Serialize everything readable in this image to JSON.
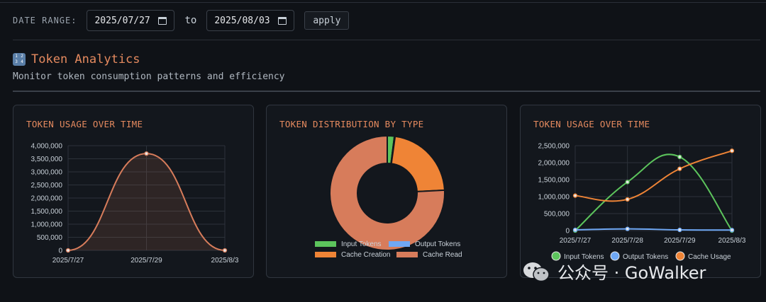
{
  "filters": {
    "label": "DATE RANGE:",
    "start_date": "2025/07/27",
    "separator": "to",
    "end_date": "2025/08/03",
    "apply_label": "apply"
  },
  "section": {
    "icon": "input-numbers-icon",
    "title": "Token Analytics",
    "subtitle": "Monitor token consumption patterns and efficiency"
  },
  "colors": {
    "accent": "#e58a5f",
    "input_tokens": "#5cc45c",
    "output_tokens": "#6fa8f5",
    "cache_creation": "#ef8436",
    "cache_read": "#d77c5b",
    "cache_usage": "#ef8436"
  },
  "chart_data": [
    {
      "type": "area",
      "title": "TOKEN USAGE OVER TIME",
      "x": [
        "2025/7/27",
        "2025/7/29",
        "2025/8/3"
      ],
      "series": [
        {
          "values": [
            0,
            3700000,
            0
          ]
        }
      ],
      "y_ticks": [
        "4,000,000",
        "3,500,000",
        "3,000,000",
        "2,500,000",
        "2,000,000",
        "1,500,000",
        "1,000,000",
        "500,000",
        "0"
      ],
      "ylim": [
        0,
        4000000
      ],
      "grid": true
    },
    {
      "type": "pie",
      "title": "TOKEN DISTRIBUTION BY TYPE",
      "labels": [
        "Input Tokens",
        "Output Tokens",
        "Cache Creation",
        "Cache Read"
      ],
      "values": [
        2,
        0.2,
        22,
        75.8
      ],
      "legend": "bottom"
    },
    {
      "type": "line",
      "title": "TOKEN USAGE OVER TIME",
      "x": [
        "2025/7/27",
        "2025/7/28",
        "2025/7/29",
        "2025/8/3"
      ],
      "series": [
        {
          "name": "Input Tokens",
          "values": [
            0,
            1430000,
            2170000,
            0
          ]
        },
        {
          "name": "Output Tokens",
          "values": [
            20000,
            50000,
            20000,
            15000
          ]
        },
        {
          "name": "Cache Usage",
          "values": [
            1030000,
            920000,
            1820000,
            2350000
          ]
        }
      ],
      "y_ticks": [
        "2,500,000",
        "2,000,000",
        "1,500,000",
        "1,000,000",
        "500,000",
        "0"
      ],
      "ylim": [
        0,
        2500000
      ],
      "grid": true,
      "legend": "bottom"
    }
  ],
  "watermark": {
    "text": "公众号 · GoWalker"
  }
}
